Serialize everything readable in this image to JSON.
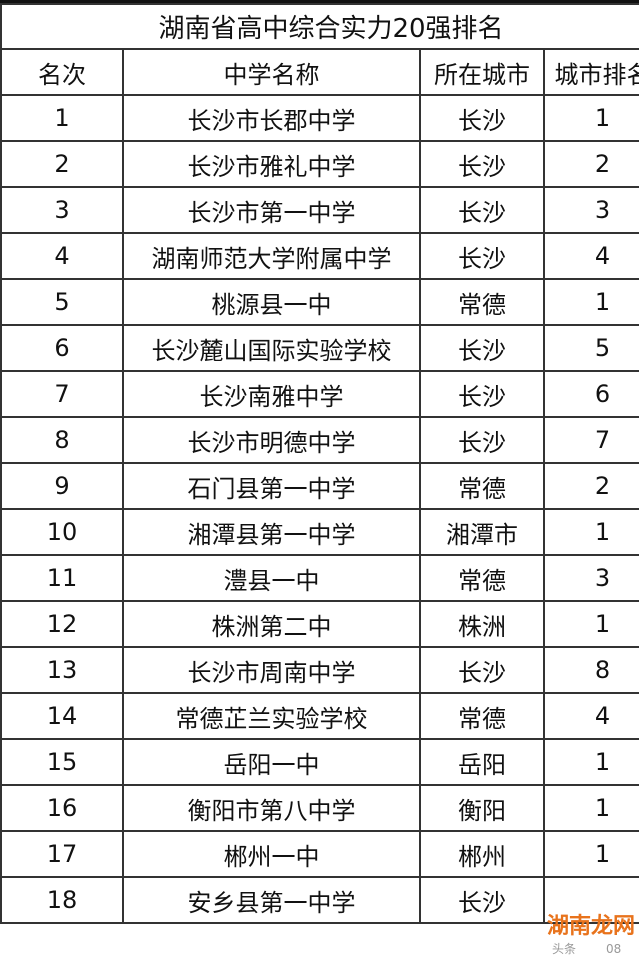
{
  "title": "湖南省高中综合实力20强排名",
  "headers": [
    "名次",
    "中学名称",
    "所在城市",
    "城市排名"
  ],
  "rows": [
    [
      "1",
      "长沙市长郡中学",
      "长沙",
      "1"
    ],
    [
      "2",
      "长沙市雅礼中学",
      "长沙",
      "2"
    ],
    [
      "3",
      "长沙市第一中学",
      "长沙",
      "3"
    ],
    [
      "4",
      "湖南师范大学附属中学",
      "长沙",
      "4"
    ],
    [
      "5",
      "桃源县一中",
      "常德",
      "1"
    ],
    [
      "6",
      "长沙麓山国际实验学校",
      "长沙",
      "5"
    ],
    [
      "7",
      "长沙南雅中学",
      "长沙",
      "6"
    ],
    [
      "8",
      "长沙市明德中学",
      "长沙",
      "7"
    ],
    [
      "9",
      "石门县第一中学",
      "常德",
      "2"
    ],
    [
      "10",
      "湘潭县第一中学",
      "湘潭市",
      "1"
    ],
    [
      "11",
      "澧县一中",
      "常德",
      "3"
    ],
    [
      "12",
      "株洲第二中",
      "株洲",
      "1"
    ],
    [
      "13",
      "长沙市周南中学",
      "长沙",
      "8"
    ],
    [
      "14",
      "常德芷兰实验学校",
      "常德",
      "4"
    ],
    [
      "15",
      "岳阳一中",
      "岳阳",
      "1"
    ],
    [
      "16",
      "衡阳市第八中学",
      "衡阳",
      "1"
    ],
    [
      "17",
      "郴州一中",
      "郴州",
      "1"
    ],
    [
      "18",
      "安乡县第一中学",
      "长沙",
      ""
    ]
  ],
  "watermark": {
    "source": "头条",
    "brand": "湖南龙网",
    "suffix": "08"
  }
}
